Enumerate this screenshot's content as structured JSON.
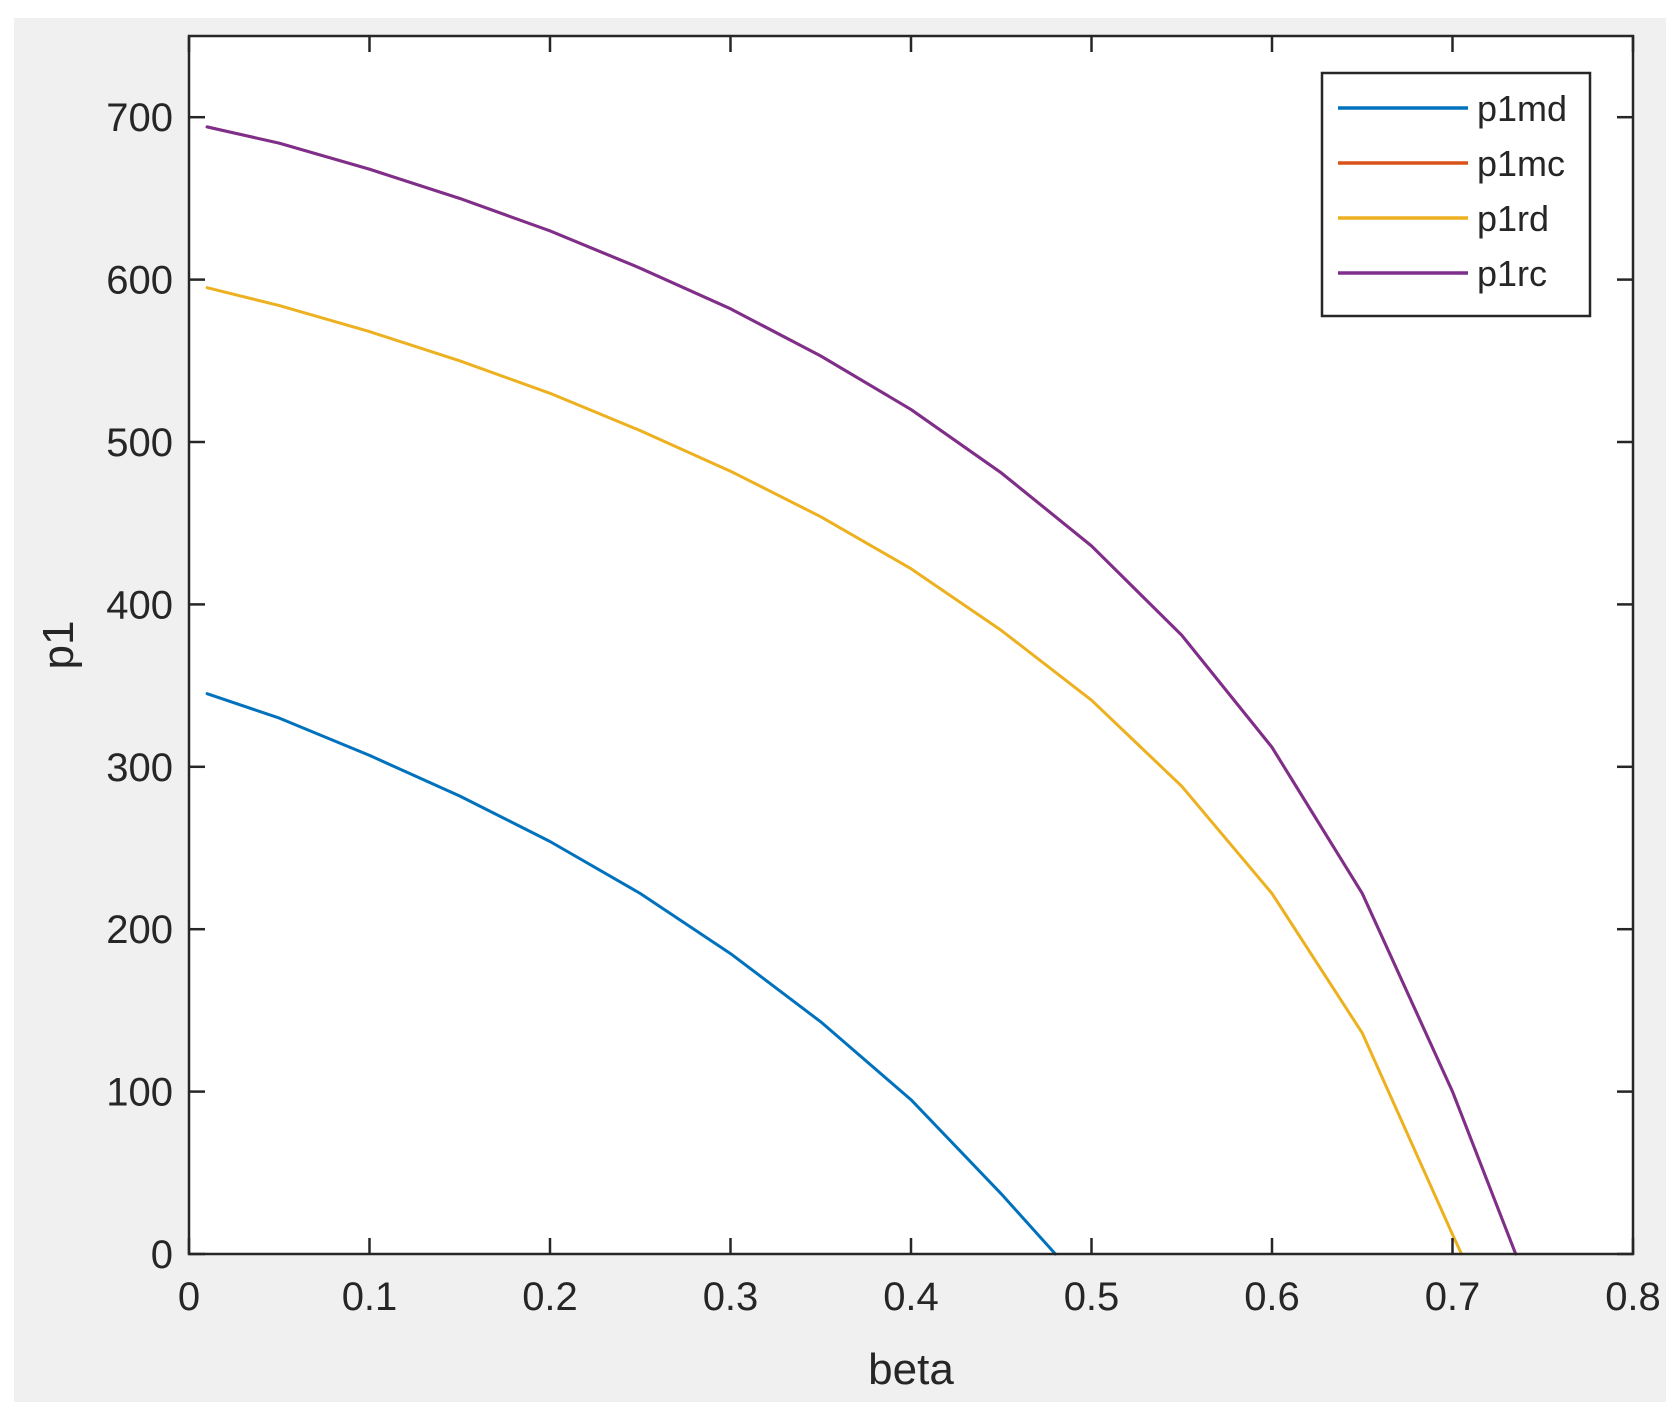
{
  "chart_data": {
    "type": "line",
    "xlabel": "beta",
    "ylabel": "p1",
    "xlim": [
      0,
      0.8
    ],
    "ylim": [
      0,
      750
    ],
    "xticks": [
      0,
      0.1,
      0.2,
      0.3,
      0.4,
      0.5,
      0.6,
      0.7,
      0.8
    ],
    "xtick_labels": [
      "0",
      "0.1",
      "0.2",
      "0.3",
      "0.4",
      "0.5",
      "0.6",
      "0.7",
      "0.8"
    ],
    "yticks": [
      0,
      100,
      200,
      300,
      400,
      500,
      600,
      700
    ],
    "ytick_labels": [
      "0",
      "100",
      "200",
      "300",
      "400",
      "500",
      "600",
      "700"
    ],
    "grid": false,
    "legend_position": "top-right",
    "series": [
      {
        "name": "p1md",
        "color": "#0072BD",
        "x": [
          0.01,
          0.05,
          0.1,
          0.15,
          0.2,
          0.25,
          0.3,
          0.35,
          0.4,
          0.45,
          0.48
        ],
        "y": [
          345,
          330,
          307,
          282,
          254,
          222,
          185,
          143,
          95,
          37,
          0
        ]
      },
      {
        "name": "p1mc",
        "color": "#D95319",
        "x": [
          0.01,
          0.05,
          0.1,
          0.15,
          0.2,
          0.25,
          0.3,
          0.35,
          0.4,
          0.45,
          0.5,
          0.55,
          0.6,
          0.65,
          0.7,
          0.735
        ],
        "y": [
          694,
          684,
          668,
          650,
          630,
          607,
          582,
          553,
          520,
          481,
          436,
          381,
          312,
          222,
          100,
          0
        ]
      },
      {
        "name": "p1rd",
        "color": "#EDB120",
        "x": [
          0.01,
          0.05,
          0.1,
          0.15,
          0.2,
          0.25,
          0.3,
          0.35,
          0.4,
          0.45,
          0.5,
          0.55,
          0.6,
          0.65,
          0.7,
          0.705
        ],
        "y": [
          595,
          584,
          568,
          550,
          530,
          507,
          482,
          454,
          422,
          384,
          341,
          288,
          222,
          136,
          12,
          0
        ]
      },
      {
        "name": "p1rc",
        "color": "#7E2F8E",
        "x": [
          0.01,
          0.05,
          0.1,
          0.15,
          0.2,
          0.25,
          0.3,
          0.35,
          0.4,
          0.45,
          0.5,
          0.55,
          0.6,
          0.65,
          0.7,
          0.735
        ],
        "y": [
          694,
          684,
          668,
          650,
          630,
          607,
          582,
          553,
          520,
          481,
          436,
          381,
          312,
          222,
          100,
          0
        ]
      }
    ]
  }
}
